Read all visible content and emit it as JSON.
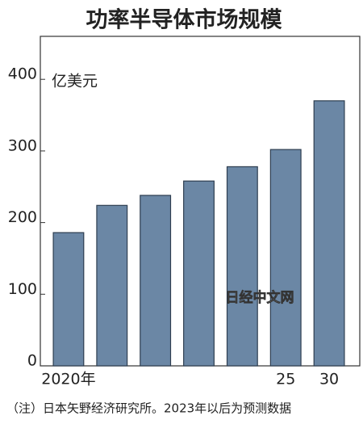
{
  "chart_data": {
    "type": "bar",
    "title": "功率半导体市场规模",
    "y_unit": "亿美元",
    "categories": [
      "2020年",
      null,
      null,
      null,
      null,
      "25",
      "30"
    ],
    "values": [
      186,
      224,
      238,
      258,
      278,
      302,
      370
    ],
    "color": "#6b87a5",
    "ylim": [
      0,
      460
    ],
    "yticks": [
      0,
      100,
      200,
      300,
      400
    ],
    "watermark": "日经中文网",
    "note": "（注）日本矢野经济研究所。2023年以后为预测数据"
  }
}
